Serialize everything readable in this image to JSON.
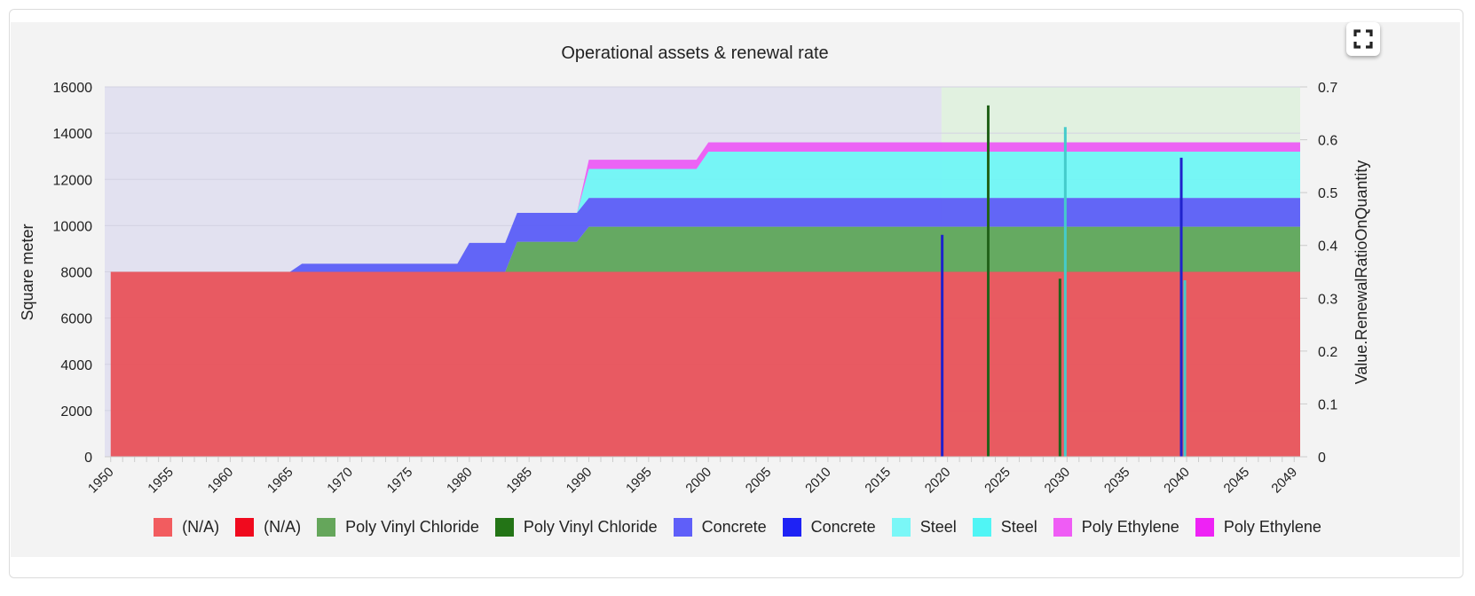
{
  "chart_data": {
    "type": "area",
    "title": "Operational assets & renewal rate",
    "ylabel": "Square meter",
    "y2label": "Value.RenewalRatioOnQuantity",
    "xlim": [
      1950,
      2049
    ],
    "ylim": [
      0,
      16000
    ],
    "y2lim": [
      0,
      0.7
    ],
    "yticks": [
      "0",
      "2000",
      "4000",
      "6000",
      "8000",
      "10000",
      "12000",
      "14000",
      "16000"
    ],
    "y2ticks": [
      "0",
      "0.1",
      "0.2",
      "0.3",
      "0.4",
      "0.5",
      "0.6",
      "0.7"
    ],
    "xtick_labels": [
      "1950",
      "1955",
      "1960",
      "1965",
      "1970",
      "1975",
      "1980",
      "1985",
      "1990",
      "1995",
      "2000",
      "2005",
      "2010",
      "2015",
      "2020",
      "2025",
      "2030",
      "2035",
      "2040",
      "2045",
      "2049"
    ],
    "grid": true,
    "stacked": true,
    "background_bands": [
      {
        "from": 1950,
        "to": 2020,
        "color": "#e2e1f0"
      },
      {
        "from": 2020,
        "to": 2049,
        "color": "#e1f1e0"
      }
    ],
    "area_series": [
      {
        "name": "(N/A)",
        "color": "#e8525a",
        "points": [
          [
            1950,
            8000
          ],
          [
            2049,
            8000
          ]
        ]
      },
      {
        "name": "Poly Vinyl Chloride",
        "color": "#5ea55a",
        "points": [
          [
            1950,
            0
          ],
          [
            1983,
            0
          ],
          [
            1984,
            1300
          ],
          [
            1989,
            1300
          ],
          [
            1990,
            1950
          ],
          [
            2049,
            1950
          ]
        ]
      },
      {
        "name": "Concrete",
        "color": "#5b5ef7",
        "points": [
          [
            1950,
            0
          ],
          [
            1965,
            0
          ],
          [
            1966,
            350
          ],
          [
            1979,
            350
          ],
          [
            1980,
            1250
          ],
          [
            2049,
            1250
          ]
        ]
      },
      {
        "name": "Steel",
        "color": "#70f6f6",
        "points": [
          [
            1950,
            0
          ],
          [
            1989,
            0
          ],
          [
            1990,
            1250
          ],
          [
            1999,
            1250
          ],
          [
            2000,
            2000
          ],
          [
            2049,
            2000
          ]
        ]
      },
      {
        "name": "Poly Ethylene",
        "color": "#ec5cf4",
        "points": [
          [
            1950,
            0
          ],
          [
            1989,
            0
          ],
          [
            1990,
            400
          ],
          [
            2049,
            400
          ]
        ]
      }
    ],
    "bar_series": [
      {
        "name": "(N/A)",
        "color": "#f00a1e",
        "axis": "right",
        "points": []
      },
      {
        "name": "Poly Vinyl Chloride",
        "color": "#22621a",
        "axis": "right",
        "points": [
          [
            2024,
            0.665
          ],
          [
            2030,
            0.337
          ]
        ]
      },
      {
        "name": "Concrete",
        "color": "#1f22cc",
        "axis": "right",
        "points": [
          [
            2020,
            0.42
          ],
          [
            2040,
            0.566
          ]
        ]
      },
      {
        "name": "Steel",
        "color": "#45cbcb",
        "axis": "right",
        "points": [
          [
            2030,
            0.624
          ],
          [
            2040,
            0.334
          ]
        ]
      },
      {
        "name": "Poly Ethylene",
        "color": "#ee22f4",
        "axis": "right",
        "points": []
      }
    ],
    "legend_position": "bottom",
    "legend": [
      {
        "label": "(N/A)",
        "color": "#f25c5f"
      },
      {
        "label": "(N/A)",
        "color": "#f00a1e"
      },
      {
        "label": "Poly Vinyl Chloride",
        "color": "#65a65b"
      },
      {
        "label": "Poly Vinyl Chloride",
        "color": "#237416"
      },
      {
        "label": "Concrete",
        "color": "#5f5ff9"
      },
      {
        "label": "Concrete",
        "color": "#1e22f5"
      },
      {
        "label": "Steel",
        "color": "#7af7f7"
      },
      {
        "label": "Steel",
        "color": "#50f5f5"
      },
      {
        "label": "Poly Ethylene",
        "color": "#ef5cf5"
      },
      {
        "label": "Poly Ethylene",
        "color": "#ee22f5"
      }
    ]
  },
  "toolbar": {
    "fullscreen_icon": "fullscreen-icon"
  }
}
